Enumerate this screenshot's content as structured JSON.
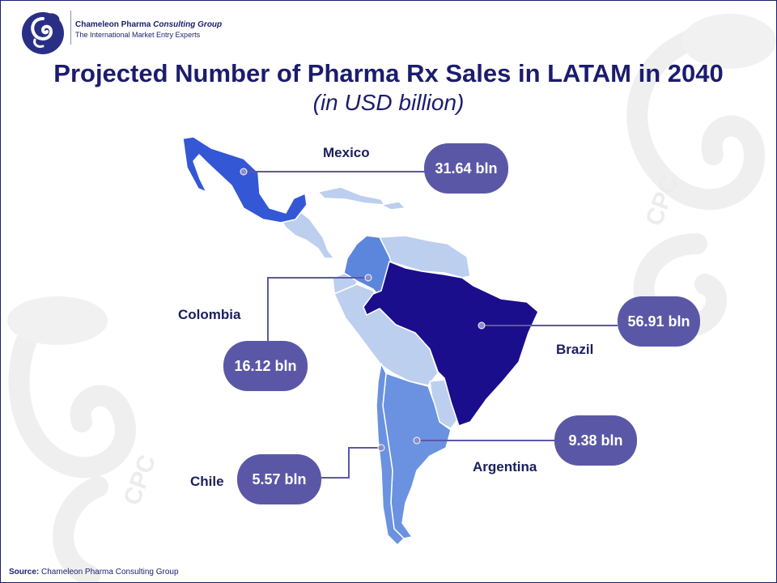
{
  "brand": {
    "name_part1": "Chameleon Pharma ",
    "name_part2": "Consulting Group",
    "tagline": "The International Market Entry Experts",
    "watermark_text": "CPC"
  },
  "title": "Projected Number of Pharma Rx Sales in LATAM in 2040",
  "subtitle": "(in USD billion)",
  "countries": [
    {
      "name": "Mexico",
      "value": 31.64,
      "value_label": "31.64 bln",
      "color": "#3457d5"
    },
    {
      "name": "Colombia",
      "value": 16.12,
      "value_label": "16.12 bln",
      "color": "#5b86dc"
    },
    {
      "name": "Brazil",
      "value": 56.91,
      "value_label": "56.91 bln",
      "color": "#1b0e8c"
    },
    {
      "name": "Argentina",
      "value": 9.38,
      "value_label": "9.38 bln",
      "color": "#6a92e0"
    },
    {
      "name": "Chile",
      "value": 5.57,
      "value_label": "5.57 bln",
      "color": "#6a92e0"
    }
  ],
  "other_region_color": "#bccfef",
  "pill_color": "#5a58a6",
  "source": {
    "label": "Source:",
    "text": "Chameleon Pharma Consulting Group"
  }
}
